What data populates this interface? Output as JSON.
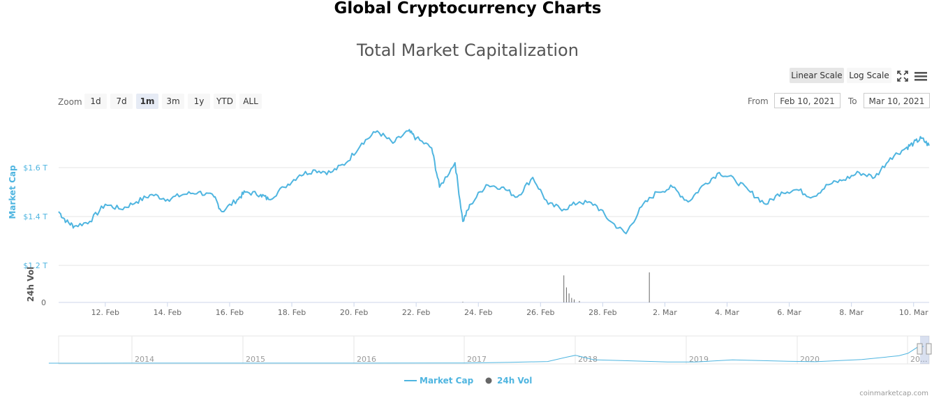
{
  "page": {
    "title": "Global Cryptocurrency Charts",
    "credit": "coinmarketcap.com"
  },
  "toolbar": {
    "scales": [
      {
        "label": "Linear Scale",
        "active": true
      },
      {
        "label": "Log Scale",
        "active": false
      }
    ],
    "fullscreen_icon": "fullscreen-icon",
    "menu_icon": "hamburger-menu-icon"
  },
  "zoom": {
    "label": "Zoom",
    "buttons": [
      "1d",
      "7d",
      "1m",
      "3m",
      "1y",
      "YTD",
      "ALL"
    ],
    "selected": "1m"
  },
  "range": {
    "from_label": "From",
    "from_value": "Feb 10, 2021",
    "to_label": "To",
    "to_value": "Mar 10, 2021"
  },
  "colors": {
    "market_cap": "#4fb5e0",
    "volume": "#666666",
    "accent": "#4a90d9"
  },
  "chart_data": {
    "type": "line",
    "title": "Total Market Capitalization",
    "y_axis": {
      "label": "Market Cap",
      "ticks": [
        "$1.2 T",
        "$1.4 T",
        "$1.6 T"
      ],
      "ylim": [
        1.2,
        1.8
      ]
    },
    "volume_axis": {
      "label": "24h Vol",
      "ticks": [
        "0"
      ]
    },
    "x_axis": {
      "ticks": [
        "12. Feb",
        "14. Feb",
        "16. Feb",
        "18. Feb",
        "20. Feb",
        "22. Feb",
        "24. Feb",
        "26. Feb",
        "28. Feb",
        "2. Mar",
        "4. Mar",
        "6. Mar",
        "8. Mar",
        "10. Mar"
      ],
      "range": [
        "2021-02-10T12:00",
        "2021-03-10T12:00"
      ]
    },
    "series": [
      {
        "name": "Market Cap",
        "unit": "T USD",
        "points": [
          [
            "2021-02-10T12:00",
            1.42
          ],
          [
            "2021-02-10T18:00",
            1.38
          ],
          [
            "2021-02-11T00:00",
            1.36
          ],
          [
            "2021-02-11T12:00",
            1.38
          ],
          [
            "2021-02-12T00:00",
            1.45
          ],
          [
            "2021-02-12T12:00",
            1.43
          ],
          [
            "2021-02-13T00:00",
            1.46
          ],
          [
            "2021-02-13T12:00",
            1.49
          ],
          [
            "2021-02-14T00:00",
            1.47
          ],
          [
            "2021-02-14T12:00",
            1.49
          ],
          [
            "2021-02-15T00:00",
            1.5
          ],
          [
            "2021-02-15T12:00",
            1.48
          ],
          [
            "2021-02-15T18:00",
            1.42
          ],
          [
            "2021-02-16T06:00",
            1.47
          ],
          [
            "2021-02-16T12:00",
            1.5
          ],
          [
            "2021-02-17T00:00",
            1.49
          ],
          [
            "2021-02-17T06:00",
            1.47
          ],
          [
            "2021-02-17T18:00",
            1.52
          ],
          [
            "2021-02-18T06:00",
            1.57
          ],
          [
            "2021-02-18T18:00",
            1.59
          ],
          [
            "2021-02-19T06:00",
            1.58
          ],
          [
            "2021-02-19T18:00",
            1.62
          ],
          [
            "2021-02-20T06:00",
            1.7
          ],
          [
            "2021-02-20T18:00",
            1.75
          ],
          [
            "2021-02-21T06:00",
            1.7
          ],
          [
            "2021-02-21T18:00",
            1.75
          ],
          [
            "2021-02-22T00:00",
            1.72
          ],
          [
            "2021-02-22T12:00",
            1.68
          ],
          [
            "2021-02-22T18:00",
            1.52
          ],
          [
            "2021-02-23T06:00",
            1.62
          ],
          [
            "2021-02-23T12:00",
            1.38
          ],
          [
            "2021-02-23T18:00",
            1.45
          ],
          [
            "2021-02-24T06:00",
            1.53
          ],
          [
            "2021-02-24T18:00",
            1.52
          ],
          [
            "2021-02-25T06:00",
            1.48
          ],
          [
            "2021-02-25T18:00",
            1.56
          ],
          [
            "2021-02-26T06:00",
            1.45
          ],
          [
            "2021-02-26T18:00",
            1.43
          ],
          [
            "2021-02-27T06:00",
            1.46
          ],
          [
            "2021-02-27T18:00",
            1.45
          ],
          [
            "2021-02-28T06:00",
            1.38
          ],
          [
            "2021-02-28T18:00",
            1.33
          ],
          [
            "2021-03-01T06:00",
            1.44
          ],
          [
            "2021-03-01T18:00",
            1.5
          ],
          [
            "2021-03-02T06:00",
            1.52
          ],
          [
            "2021-03-02T18:00",
            1.46
          ],
          [
            "2021-03-03T06:00",
            1.53
          ],
          [
            "2021-03-03T18:00",
            1.58
          ],
          [
            "2021-03-04T06:00",
            1.55
          ],
          [
            "2021-03-04T18:00",
            1.5
          ],
          [
            "2021-03-05T06:00",
            1.45
          ],
          [
            "2021-03-05T18:00",
            1.5
          ],
          [
            "2021-03-06T06:00",
            1.51
          ],
          [
            "2021-03-06T18:00",
            1.48
          ],
          [
            "2021-03-07T06:00",
            1.53
          ],
          [
            "2021-03-07T18:00",
            1.55
          ],
          [
            "2021-03-08T06:00",
            1.58
          ],
          [
            "2021-03-08T18:00",
            1.56
          ],
          [
            "2021-03-09T06:00",
            1.64
          ],
          [
            "2021-03-09T18:00",
            1.68
          ],
          [
            "2021-03-10T00:00",
            1.7
          ],
          [
            "2021-03-10T06:00",
            1.72
          ],
          [
            "2021-03-10T12:00",
            1.69
          ]
        ]
      },
      {
        "name": "24h Vol",
        "points": [
          [
            "2021-02-23T12:00",
            0.02
          ],
          [
            "2021-02-26T18:00",
            0.9
          ],
          [
            "2021-02-26T20:00",
            0.5
          ],
          [
            "2021-02-26T22:00",
            0.3
          ],
          [
            "2021-02-27T00:00",
            0.15
          ],
          [
            "2021-02-27T02:00",
            0.1
          ],
          [
            "2021-02-27T06:00",
            0.05
          ],
          [
            "2021-03-01T12:00",
            1.0
          ]
        ]
      }
    ],
    "navigator": {
      "years": [
        "2014",
        "2015",
        "2016",
        "2017",
        "2018",
        "2019",
        "2020",
        "20..."
      ],
      "points": [
        [
          "2013-04",
          0.001
        ],
        [
          "2014-01",
          0.01
        ],
        [
          "2015-01",
          0.005
        ],
        [
          "2016-01",
          0.007
        ],
        [
          "2017-01",
          0.018
        ],
        [
          "2017-06",
          0.09
        ],
        [
          "2017-10",
          0.17
        ],
        [
          "2017-12",
          0.6
        ],
        [
          "2018-01",
          0.8
        ],
        [
          "2018-03",
          0.35
        ],
        [
          "2018-06",
          0.27
        ],
        [
          "2018-11",
          0.13
        ],
        [
          "2019-02",
          0.12
        ],
        [
          "2019-06",
          0.33
        ],
        [
          "2019-12",
          0.19
        ],
        [
          "2020-03",
          0.15
        ],
        [
          "2020-08",
          0.37
        ],
        [
          "2020-12",
          0.75
        ],
        [
          "2021-01",
          1.0
        ],
        [
          "2021-02",
          1.6
        ],
        [
          "2021-03",
          1.7
        ]
      ]
    },
    "legend": [
      "Market Cap",
      "24h Vol"
    ],
    "legend_position": "bottom-center",
    "grid": true
  }
}
